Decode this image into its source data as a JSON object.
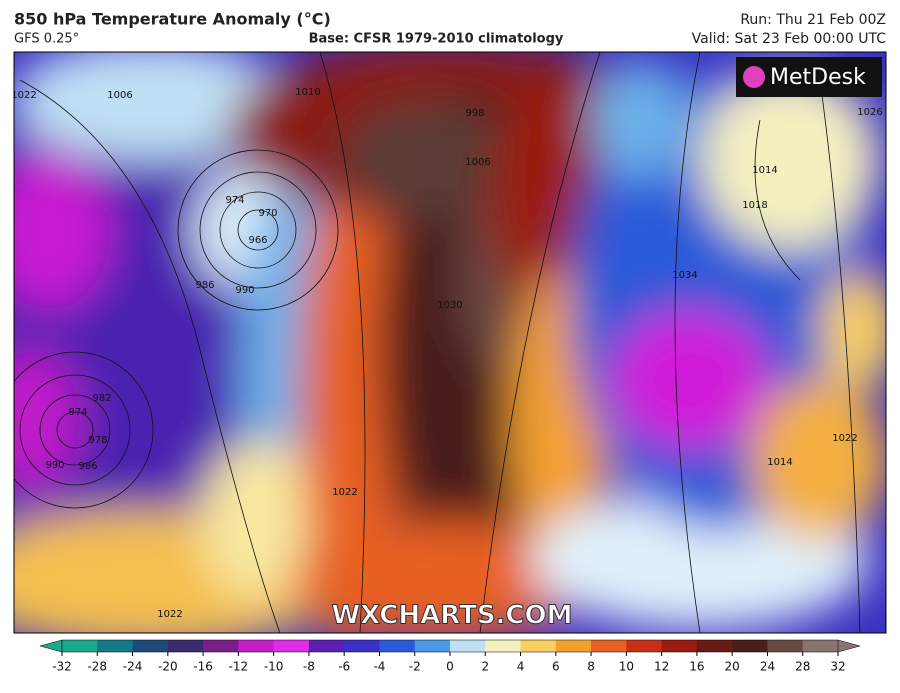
{
  "header": {
    "title": "850 hPa Temperature Anomaly (°C)",
    "model": "GFS 0.25°",
    "base": "Base: CFSR 1979-2010 climatology",
    "run": "Run: Thu 21 Feb 00Z",
    "valid": "Valid: Sat 23 Feb 00:00 UTC"
  },
  "logo": "MetDesk",
  "watermark": "WXCHARTS.COM",
  "isobar_labels": [
    "1022",
    "1006",
    "1010",
    "998",
    "1006",
    "970",
    "974",
    "966",
    "990",
    "986",
    "974",
    "982",
    "978",
    "986",
    "990",
    "1030",
    "1034",
    "1014",
    "1018",
    "1026",
    "1022",
    "1014",
    "1022",
    "1022"
  ],
  "colorbar": {
    "ticks": [
      -32,
      -28,
      -24,
      -20,
      -16,
      -12,
      -10,
      -8,
      -6,
      -4,
      -2,
      0,
      2,
      4,
      6,
      8,
      10,
      12,
      16,
      20,
      24,
      28,
      32
    ],
    "colors": [
      "#1aa88f",
      "#137a8a",
      "#1d4a7a",
      "#3a2a6e",
      "#7a1f8a",
      "#c21fc8",
      "#e02ee8",
      "#5a1fb0",
      "#3a30c8",
      "#2a5ad8",
      "#4a9ae8",
      "#bfe0f4",
      "#f4f0c0",
      "#f8d060",
      "#f4a030",
      "#e86020",
      "#c83018",
      "#9a1c10",
      "#6a1a14",
      "#4a1e1a",
      "#6a4a44",
      "#8a7470"
    ]
  }
}
